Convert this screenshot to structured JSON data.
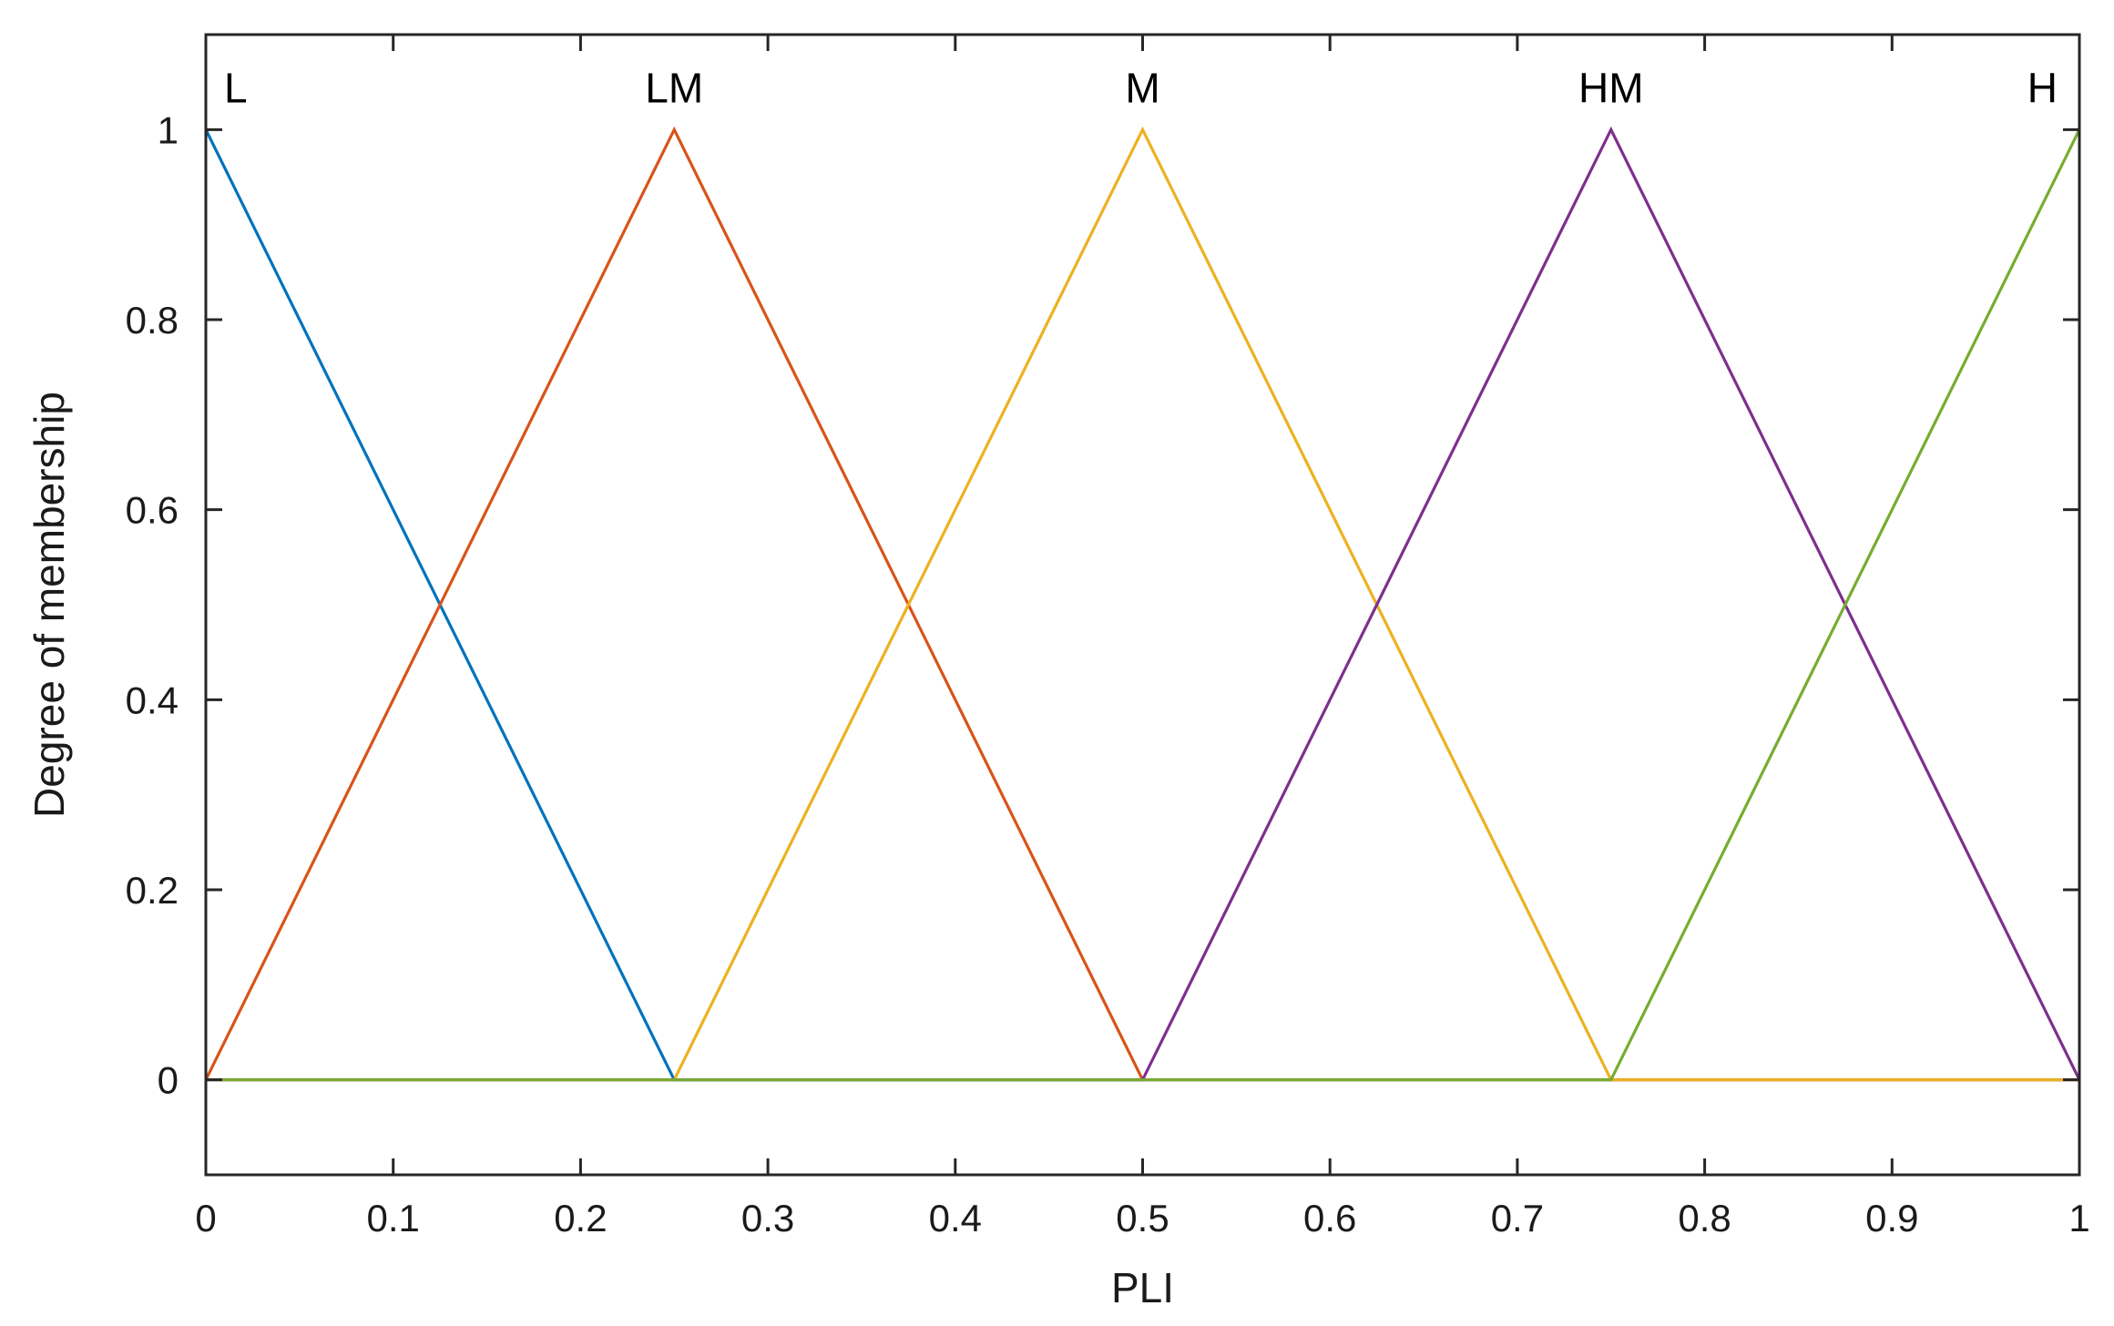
{
  "chart_data": {
    "type": "line",
    "title": "",
    "xlabel": "PLI",
    "ylabel": "Degree of membership",
    "xlim": [
      0,
      1
    ],
    "ylim": [
      -0.1,
      1.1
    ],
    "xticks": [
      0,
      0.1,
      0.2,
      0.3,
      0.4,
      0.5,
      0.6,
      0.7,
      0.8,
      0.9,
      1
    ],
    "xtick_labels": [
      "0",
      "0.1",
      "0.2",
      "0.3",
      "0.4",
      "0.5",
      "0.6",
      "0.7",
      "0.8",
      "0.9",
      "1"
    ],
    "yticks": [
      0,
      0.2,
      0.4,
      0.6,
      0.8,
      1
    ],
    "ytick_labels": [
      "0",
      "0.2",
      "0.4",
      "0.6",
      "0.8",
      "1"
    ],
    "grid": false,
    "series": [
      {
        "name": "L",
        "color": "#0072BD",
        "x": [
          0,
          0.25,
          1
        ],
        "y": [
          1,
          0,
          0
        ]
      },
      {
        "name": "LM",
        "color": "#D95319",
        "x": [
          0,
          0.25,
          0.5,
          1
        ],
        "y": [
          0,
          1,
          0,
          0
        ]
      },
      {
        "name": "M",
        "color": "#EDB120",
        "x": [
          0,
          0.25,
          0.5,
          0.75,
          1
        ],
        "y": [
          0,
          0,
          1,
          0,
          0
        ]
      },
      {
        "name": "HM",
        "color": "#7E2F8E",
        "x": [
          0,
          0.5,
          0.75,
          1
        ],
        "y": [
          0,
          0,
          1,
          0
        ]
      },
      {
        "name": "H",
        "color": "#77AC30",
        "x": [
          0,
          0.75,
          1
        ],
        "y": [
          0,
          0,
          1
        ]
      }
    ],
    "annotations": [
      {
        "text": "L",
        "x": 0,
        "y": 1,
        "anchor": "start"
      },
      {
        "text": "LM",
        "x": 0.25,
        "y": 1,
        "anchor": "middle"
      },
      {
        "text": "M",
        "x": 0.5,
        "y": 1,
        "anchor": "middle"
      },
      {
        "text": "HM",
        "x": 0.75,
        "y": 1,
        "anchor": "middle"
      },
      {
        "text": "H",
        "x": 1,
        "y": 1,
        "anchor": "end"
      }
    ]
  }
}
